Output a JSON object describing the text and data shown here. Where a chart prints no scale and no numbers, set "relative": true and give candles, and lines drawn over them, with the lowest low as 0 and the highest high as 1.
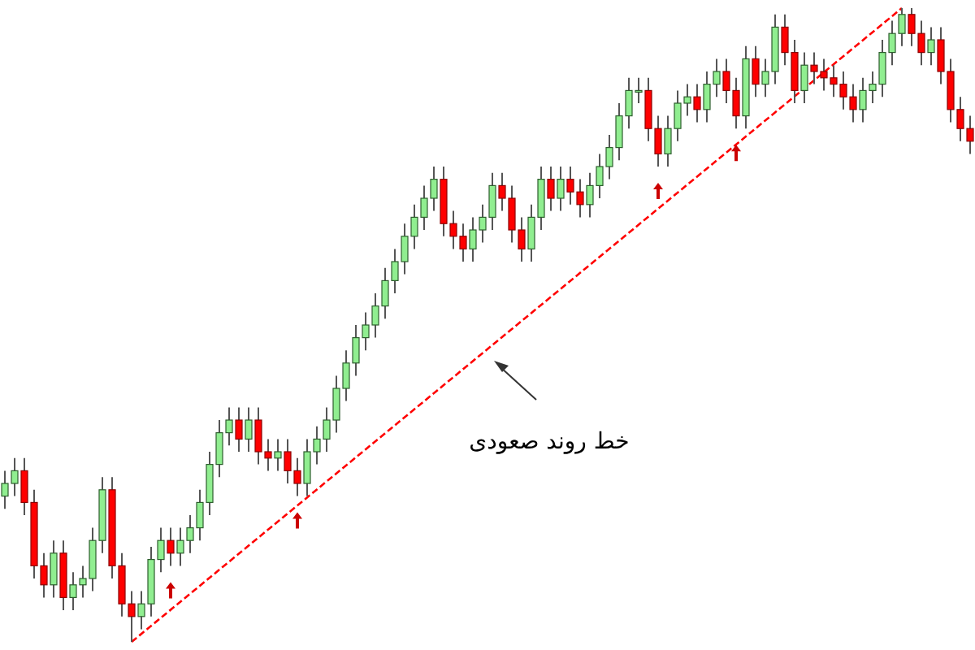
{
  "chart_data": {
    "type": "candlestick",
    "relative": true,
    "categories": [
      null,
      null,
      null,
      null,
      null,
      null,
      null,
      null,
      null,
      null,
      null,
      null,
      null,
      null,
      null,
      null,
      null,
      null,
      null,
      null,
      null,
      null,
      null,
      null,
      null,
      null,
      null,
      null,
      null,
      null,
      null,
      null,
      null,
      null,
      null,
      null,
      null,
      null,
      null,
      null,
      null,
      null,
      null,
      null,
      null,
      null,
      null,
      null,
      null,
      null,
      null,
      null,
      null,
      null,
      null,
      null,
      null,
      null,
      null,
      null,
      null,
      null,
      null,
      null,
      null,
      null,
      null,
      null,
      null,
      null,
      null,
      null,
      null,
      null,
      null,
      null,
      null,
      null,
      null,
      null,
      null,
      null,
      null,
      null,
      null,
      null,
      null,
      null,
      null,
      null,
      null,
      null,
      null,
      null,
      null,
      null,
      null,
      null,
      null,
      null
    ],
    "ohlc": [
      [
        0.23,
        0.27,
        0.21,
        0.25
      ],
      [
        0.25,
        0.29,
        0.23,
        0.27
      ],
      [
        0.27,
        0.29,
        0.2,
        0.22
      ],
      [
        0.22,
        0.24,
        0.1,
        0.12
      ],
      [
        0.12,
        0.14,
        0.07,
        0.09
      ],
      [
        0.09,
        0.16,
        0.07,
        0.14
      ],
      [
        0.14,
        0.16,
        0.05,
        0.07
      ],
      [
        0.07,
        0.11,
        0.05,
        0.09
      ],
      [
        0.09,
        0.12,
        0.07,
        0.1
      ],
      [
        0.1,
        0.18,
        0.08,
        0.16
      ],
      [
        0.16,
        0.26,
        0.14,
        0.24
      ],
      [
        0.24,
        0.26,
        0.1,
        0.12
      ],
      [
        0.12,
        0.14,
        0.04,
        0.06
      ],
      [
        0.06,
        0.08,
        0.0,
        0.04
      ],
      [
        0.04,
        0.08,
        0.02,
        0.06
      ],
      [
        0.06,
        0.15,
        0.04,
        0.13
      ],
      [
        0.13,
        0.18,
        0.11,
        0.16
      ],
      [
        0.16,
        0.18,
        0.12,
        0.14
      ],
      [
        0.14,
        0.18,
        0.12,
        0.16
      ],
      [
        0.16,
        0.2,
        0.14,
        0.18
      ],
      [
        0.18,
        0.24,
        0.16,
        0.22
      ],
      [
        0.22,
        0.3,
        0.2,
        0.28
      ],
      [
        0.28,
        0.35,
        0.26,
        0.33
      ],
      [
        0.33,
        0.37,
        0.31,
        0.35
      ],
      [
        0.35,
        0.37,
        0.3,
        0.32
      ],
      [
        0.32,
        0.37,
        0.3,
        0.35
      ],
      [
        0.35,
        0.37,
        0.28,
        0.3
      ],
      [
        0.3,
        0.32,
        0.27,
        0.29
      ],
      [
        0.29,
        0.32,
        0.27,
        0.3
      ],
      [
        0.3,
        0.32,
        0.25,
        0.27
      ],
      [
        0.27,
        0.29,
        0.23,
        0.25
      ],
      [
        0.25,
        0.32,
        0.23,
        0.3
      ],
      [
        0.3,
        0.34,
        0.28,
        0.32
      ],
      [
        0.32,
        0.37,
        0.3,
        0.35
      ],
      [
        0.35,
        0.42,
        0.33,
        0.4
      ],
      [
        0.4,
        0.46,
        0.38,
        0.44
      ],
      [
        0.44,
        0.5,
        0.42,
        0.48
      ],
      [
        0.48,
        0.52,
        0.46,
        0.5
      ],
      [
        0.5,
        0.55,
        0.48,
        0.53
      ],
      [
        0.53,
        0.59,
        0.51,
        0.57
      ],
      [
        0.57,
        0.62,
        0.55,
        0.6
      ],
      [
        0.6,
        0.66,
        0.58,
        0.64
      ],
      [
        0.64,
        0.69,
        0.62,
        0.67
      ],
      [
        0.67,
        0.72,
        0.65,
        0.7
      ],
      [
        0.7,
        0.75,
        0.68,
        0.73
      ],
      [
        0.73,
        0.75,
        0.64,
        0.66
      ],
      [
        0.66,
        0.68,
        0.62,
        0.64
      ],
      [
        0.64,
        0.66,
        0.6,
        0.62
      ],
      [
        0.62,
        0.67,
        0.6,
        0.65
      ],
      [
        0.65,
        0.69,
        0.63,
        0.67
      ],
      [
        0.67,
        0.74,
        0.65,
        0.72
      ],
      [
        0.72,
        0.74,
        0.68,
        0.7
      ],
      [
        0.7,
        0.72,
        0.63,
        0.65
      ],
      [
        0.65,
        0.67,
        0.6,
        0.62
      ],
      [
        0.62,
        0.69,
        0.6,
        0.67
      ],
      [
        0.67,
        0.75,
        0.65,
        0.73
      ],
      [
        0.73,
        0.75,
        0.68,
        0.7
      ],
      [
        0.7,
        0.75,
        0.68,
        0.73
      ],
      [
        0.73,
        0.75,
        0.69,
        0.71
      ],
      [
        0.71,
        0.73,
        0.67,
        0.69
      ],
      [
        0.69,
        0.74,
        0.67,
        0.72
      ],
      [
        0.72,
        0.77,
        0.7,
        0.75
      ],
      [
        0.75,
        0.8,
        0.73,
        0.78
      ],
      [
        0.78,
        0.85,
        0.76,
        0.83
      ],
      [
        0.83,
        0.89,
        0.81,
        0.87
      ],
      [
        0.87,
        0.89,
        0.85,
        0.87
      ],
      [
        0.87,
        0.89,
        0.79,
        0.81
      ],
      [
        0.81,
        0.83,
        0.75,
        0.77
      ],
      [
        0.77,
        0.83,
        0.75,
        0.81
      ],
      [
        0.81,
        0.87,
        0.79,
        0.85
      ],
      [
        0.85,
        0.88,
        0.83,
        0.86
      ],
      [
        0.86,
        0.88,
        0.82,
        0.84
      ],
      [
        0.84,
        0.9,
        0.82,
        0.88
      ],
      [
        0.88,
        0.92,
        0.86,
        0.9
      ],
      [
        0.9,
        0.92,
        0.85,
        0.87
      ],
      [
        0.87,
        0.89,
        0.81,
        0.83
      ],
      [
        0.83,
        0.94,
        0.81,
        0.92
      ],
      [
        0.92,
        0.94,
        0.86,
        0.88
      ],
      [
        0.88,
        0.92,
        0.86,
        0.9
      ],
      [
        0.9,
        0.99,
        0.88,
        0.97
      ],
      [
        0.97,
        0.99,
        0.91,
        0.93
      ],
      [
        0.93,
        0.95,
        0.85,
        0.87
      ],
      [
        0.87,
        0.93,
        0.85,
        0.91
      ],
      [
        0.91,
        0.93,
        0.88,
        0.9
      ],
      [
        0.9,
        0.92,
        0.87,
        0.89
      ],
      [
        0.89,
        0.91,
        0.86,
        0.88
      ],
      [
        0.88,
        0.9,
        0.84,
        0.86
      ],
      [
        0.86,
        0.88,
        0.82,
        0.84
      ],
      [
        0.84,
        0.89,
        0.82,
        0.87
      ],
      [
        0.87,
        0.9,
        0.85,
        0.88
      ],
      [
        0.88,
        0.95,
        0.86,
        0.93
      ],
      [
        0.93,
        0.98,
        0.91,
        0.96
      ],
      [
        0.96,
        1.0,
        0.94,
        0.99
      ],
      [
        0.99,
        1.0,
        0.94,
        0.96
      ],
      [
        0.96,
        0.98,
        0.91,
        0.93
      ],
      [
        0.93,
        0.97,
        0.91,
        0.95
      ],
      [
        0.95,
        0.97,
        0.88,
        0.9
      ],
      [
        0.9,
        0.92,
        0.82,
        0.84
      ],
      [
        0.84,
        0.86,
        0.79,
        0.81
      ],
      [
        0.81,
        0.83,
        0.77,
        0.79
      ]
    ],
    "series": [
      {
        "type": "line",
        "values": [
          null,
          null,
          null,
          null,
          null,
          null,
          null,
          null,
          null,
          null,
          null,
          null,
          null,
          0,
          null,
          null,
          null,
          null,
          null,
          null,
          null,
          null,
          null,
          null,
          null,
          null,
          null,
          null,
          null,
          null,
          null,
          null,
          null,
          null,
          null,
          null,
          null,
          null,
          null,
          null,
          null,
          null,
          null,
          null,
          null,
          null,
          null,
          null,
          null,
          null,
          null,
          null,
          null,
          null,
          null,
          null,
          null,
          null,
          null,
          null,
          null,
          null,
          null,
          null,
          null,
          null,
          null,
          null,
          null,
          null,
          null,
          null,
          null,
          null,
          null,
          null,
          null,
          null,
          null,
          null,
          null,
          null,
          null,
          null,
          null,
          null,
          null,
          null,
          null,
          null,
          null,
          null,
          1,
          null,
          null,
          null,
          null,
          null,
          null,
          null
        ],
        "color": "#ff0000",
        "line_style": "dashed"
      }
    ],
    "annotations": [
      "خط روند صعودی"
    ]
  }
}
